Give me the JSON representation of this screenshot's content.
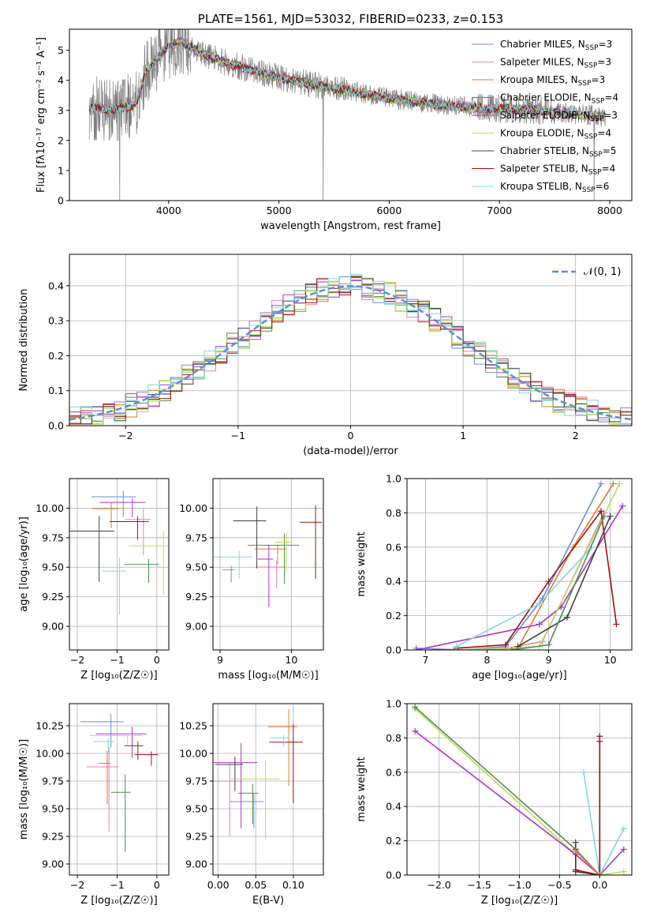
{
  "chart_data": [
    {
      "id": "spectrum",
      "type": "line",
      "title": "PLATE=1561, MJD=53032, FIBERID=0233, z=0.153",
      "xlabel": "wavelength [Angstrom, rest frame]",
      "ylabel": "Flux [fλ10⁻¹⁷ erg cm⁻² s⁻¹ A⁻¹]",
      "xlim": [
        3100,
        8200
      ],
      "ylim": [
        0,
        5.7
      ],
      "xticks": [
        4000,
        5000,
        6000,
        7000,
        8000
      ],
      "yticks": [
        0,
        1,
        2,
        3,
        4,
        5
      ],
      "grid": false,
      "legend_position": "top-right",
      "observed_color": "#808080",
      "continuum_points": [
        [
          3280,
          3.1
        ],
        [
          3500,
          3.0
        ],
        [
          3700,
          3.2
        ],
        [
          3800,
          4.3
        ],
        [
          3950,
          5.0
        ],
        [
          4100,
          5.3
        ],
        [
          4300,
          4.9
        ],
        [
          4500,
          4.6
        ],
        [
          4800,
          4.3
        ],
        [
          5100,
          4.0
        ],
        [
          5400,
          3.8
        ],
        [
          5700,
          3.6
        ],
        [
          6000,
          3.4
        ],
        [
          6300,
          3.25
        ],
        [
          6600,
          3.15
        ],
        [
          6900,
          3.05
        ],
        [
          7200,
          3.05
        ],
        [
          7500,
          2.95
        ],
        [
          7800,
          2.85
        ],
        [
          7960,
          2.8
        ]
      ],
      "legend": [
        {
          "label": "Chabrier MILES, N",
          "sub": "SSP",
          "tail": "=3",
          "color": "#6b8fd8"
        },
        {
          "label": "Salpeter MILES, N",
          "sub": "SSP",
          "tail": "=3",
          "color": "#e87fb8"
        },
        {
          "label": "Kroupa MILES, N",
          "sub": "SSP",
          "tail": "=3",
          "color": "#e27a2e"
        },
        {
          "label": "Chabrier ELODIE, N",
          "sub": "SSP",
          "tail": "=4",
          "color": "#4f8f4f"
        },
        {
          "label": "Salpeter ELODIE, N",
          "sub": "SSP",
          "tail": "=3",
          "color": "#b030c8"
        },
        {
          "label": "Kroupa ELODIE, N",
          "sub": "SSP",
          "tail": "=4",
          "color": "#b8df5a"
        },
        {
          "label": "Chabrier STELIB, N",
          "sub": "SSP",
          "tail": "=5",
          "color": "#404040"
        },
        {
          "label": "Salpeter STELIB, N",
          "sub": "SSP",
          "tail": "=4",
          "color": "#a01010"
        },
        {
          "label": "Kroupa STELIB, N",
          "sub": "SSP",
          "tail": "=6",
          "color": "#80d8e0"
        }
      ]
    },
    {
      "id": "residuals",
      "type": "histogram",
      "xlabel": "(data-model)/error",
      "ylabel": "Normed distribution",
      "xlim": [
        -2.5,
        2.5
      ],
      "ylim": [
        0,
        0.49
      ],
      "xticks": [
        -2,
        -1,
        0,
        1,
        2
      ],
      "yticks": [
        0.0,
        0.1,
        0.2,
        0.3,
        0.4
      ],
      "grid": true,
      "legend_position": "top-right",
      "gaussian_label": "𝒩(0, 1)",
      "gaussian_color": "#5b8fd6"
    },
    {
      "id": "age-vs-Z",
      "type": "errorbar",
      "xlabel": "Z [log₁₀(Z/Z☉)]",
      "ylabel": "age  [log₁₀(age/yr)]",
      "xlim": [
        -2.2,
        0.3
      ],
      "ylim": [
        8.8,
        10.25
      ],
      "xticks": [
        -2,
        -1,
        0
      ],
      "yticks": [
        9.0,
        9.25,
        9.5,
        9.75,
        10.0
      ],
      "grid": true
    },
    {
      "id": "age-vs-mass",
      "type": "errorbar",
      "xlabel": "mass [log₁₀(M/M☉)]",
      "ylabel": "",
      "xlim": [
        8.9,
        10.45
      ],
      "ylim": [
        8.8,
        10.25
      ],
      "xticks": [
        9,
        10
      ],
      "yticks": [
        9.0,
        9.25,
        9.5,
        9.75,
        10.0
      ],
      "grid": true
    },
    {
      "id": "weight-vs-age",
      "type": "line",
      "xlabel": "age  [log₁₀(age/yr)]",
      "ylabel": "mass weight",
      "xlim": [
        6.7,
        10.35
      ],
      "ylim": [
        0,
        1.0
      ],
      "xticks": [
        7,
        8,
        9,
        10
      ],
      "yticks": [
        0.0,
        0.2,
        0.4,
        0.6,
        0.8,
        1.0
      ],
      "grid": true,
      "series": [
        {
          "color": "#6b8fd8",
          "x": [
            6.85,
            7.6,
            8.3,
            8.9,
            9.85
          ],
          "y": [
            0.01,
            0.0,
            0.02,
            0.3,
            0.97
          ]
        },
        {
          "color": "#e27a2e",
          "x": [
            7.5,
            8.5,
            9.4,
            10.05
          ],
          "y": [
            0.0,
            0.01,
            0.6,
            0.97
          ]
        },
        {
          "color": "#e87fb8",
          "x": [
            8.2,
            8.9,
            9.9
          ],
          "y": [
            0.0,
            0.05,
            0.8
          ]
        },
        {
          "color": "#b030c8",
          "x": [
            6.85,
            8.85,
            9.2,
            10.2
          ],
          "y": [
            0.0,
            0.15,
            0.25,
            0.84
          ]
        },
        {
          "color": "#b8df5a",
          "x": [
            7.6,
            8.85,
            10.15
          ],
          "y": [
            0.0,
            0.02,
            0.97
          ]
        },
        {
          "color": "#404040",
          "x": [
            8.5,
            9.3,
            10.0
          ],
          "y": [
            0.02,
            0.19,
            0.78
          ]
        },
        {
          "color": "#a01010",
          "x": [
            7.5,
            8.3,
            9.0,
            9.85,
            10.1
          ],
          "y": [
            0.01,
            0.03,
            0.4,
            0.81,
            0.15
          ]
        },
        {
          "color": "#80d8e0",
          "x": [
            7.5,
            8.85,
            9.7
          ],
          "y": [
            0.02,
            0.27,
            0.6
          ]
        },
        {
          "color": "#4f8f4f",
          "x": [
            8.4,
            9.0,
            9.9
          ],
          "y": [
            0.0,
            0.03,
            0.78
          ]
        }
      ]
    },
    {
      "id": "mass-vs-Z",
      "type": "errorbar",
      "xlabel": "Z [log₁₀(Z/Z☉)]",
      "ylabel": "mass [log₁₀(M/M☉)]",
      "xlim": [
        -2.2,
        0.3
      ],
      "ylim": [
        8.9,
        10.45
      ],
      "xticks": [
        -2,
        -1,
        0
      ],
      "yticks": [
        9.0,
        9.25,
        9.5,
        9.75,
        10.0,
        10.25
      ],
      "grid": true
    },
    {
      "id": "mass-vs-EBV",
      "type": "errorbar",
      "xlabel": "E(B-V)",
      "ylabel": "",
      "xlim": [
        -0.007,
        0.14
      ],
      "ylim": [
        8.9,
        10.45
      ],
      "xticks": [
        0.0,
        0.05,
        0.1
      ],
      "tick_labels": [
        "0.00",
        "0.05",
        "0.10"
      ],
      "yticks": [
        9.0,
        9.25,
        9.5,
        9.75,
        10.0,
        10.25
      ],
      "grid": true
    },
    {
      "id": "weight-vs-Z",
      "type": "line",
      "xlabel": "Z [log₁₀(Z/Z☉)]",
      "ylabel": "mass weight",
      "xlim": [
        -2.4,
        0.4
      ],
      "ylim": [
        0,
        1.0
      ],
      "xticks": [
        -2.0,
        -1.5,
        -1.0,
        -0.5,
        0.0
      ],
      "yticks": [
        0.0,
        0.2,
        0.4,
        0.6,
        0.8,
        1.0
      ],
      "grid": true,
      "series": [
        {
          "color": "#b8df5a",
          "x": [
            -2.3,
            -0.3,
            0.0,
            0.3
          ],
          "y": [
            0.97,
            0.12,
            0.0,
            0.02
          ]
        },
        {
          "color": "#4f8f4f",
          "x": [
            -2.3,
            -0.3,
            0.0
          ],
          "y": [
            0.98,
            0.15,
            0.0
          ]
        },
        {
          "color": "#b030c8",
          "x": [
            -2.3,
            -0.3,
            0.0,
            0.3
          ],
          "y": [
            0.84,
            0.12,
            0.0,
            0.15
          ]
        },
        {
          "color": "#80d8e0",
          "x": [
            -0.2,
            0.0,
            0.3
          ],
          "y": [
            0.6,
            0.0,
            0.27
          ]
        },
        {
          "color": "#404040",
          "x": [
            -0.3,
            -0.3,
            0.0,
            0.0
          ],
          "y": [
            0.19,
            0.02,
            0.0,
            0.78
          ]
        },
        {
          "color": "#a01010",
          "x": [
            -0.3,
            -0.3,
            0.0,
            0.0
          ],
          "y": [
            0.15,
            0.03,
            0.0,
            0.81
          ]
        },
        {
          "color": "#e27a2e",
          "x": [
            -0.3,
            0.0
          ],
          "y": [
            0.14,
            0.0
          ]
        }
      ]
    }
  ]
}
